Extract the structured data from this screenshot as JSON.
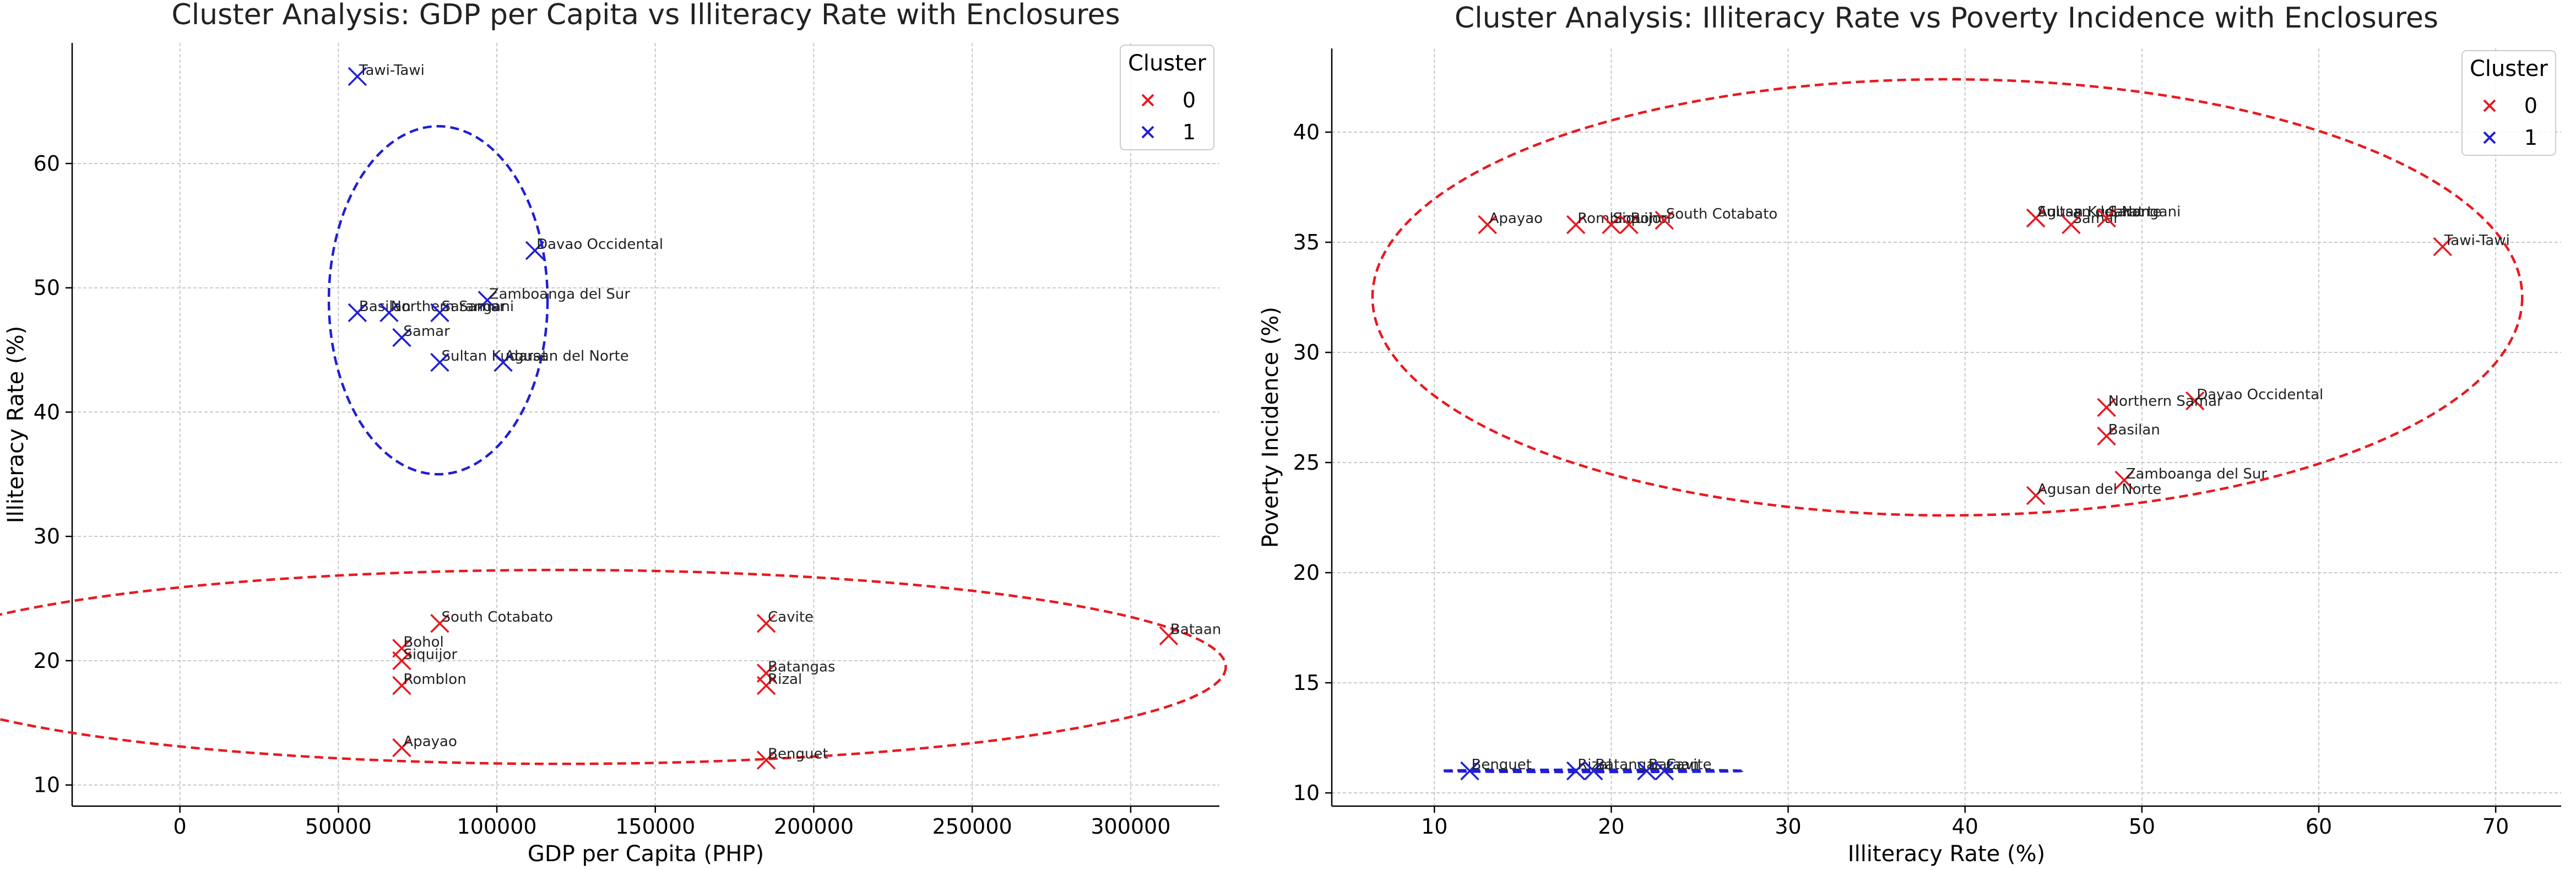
{
  "figure": {
    "background": "#ffffff"
  },
  "colors": {
    "cluster_0": "#e8191f",
    "cluster_1": "#1f1fd6",
    "grid": "#c8c8c8",
    "axis": "#000000"
  },
  "chart_data": [
    {
      "type": "scatter",
      "title": "Cluster Analysis: GDP per Capita vs Illiteracy Rate with Enclosures",
      "xlabel": "GDP per Capita (PHP)",
      "ylabel": "Illiteracy Rate (%)",
      "xlim": [
        -34000,
        328000
      ],
      "ylim": [
        8.3,
        69.7
      ],
      "xticks": [
        0,
        50000,
        100000,
        150000,
        200000,
        250000,
        300000
      ],
      "yticks": [
        10,
        20,
        30,
        40,
        50,
        60
      ],
      "grid": true,
      "legend": {
        "title": "Cluster",
        "position": "top-right",
        "entries": [
          "0",
          "1"
        ]
      },
      "enclosures": [
        {
          "cluster": "0",
          "cx": 120000,
          "cy": 19.5,
          "rx": 210000,
          "ry": 7.8
        },
        {
          "cluster": "1",
          "cx": 81500,
          "cy": 49,
          "rx": 34500,
          "ry": 14
        }
      ],
      "series": [
        {
          "name": "0",
          "points": [
            {
              "label": "South Cotabato",
              "x": 82000,
              "y": 23
            },
            {
              "label": "Bohol",
              "x": 70000,
              "y": 21
            },
            {
              "label": "Siquijor",
              "x": 70000,
              "y": 20
            },
            {
              "label": "Romblon",
              "x": 70000,
              "y": 18
            },
            {
              "label": "Apayao",
              "x": 70000,
              "y": 13
            },
            {
              "label": "Cavite",
              "x": 185000,
              "y": 23
            },
            {
              "label": "Batangas",
              "x": 185000,
              "y": 19
            },
            {
              "label": "Rizal",
              "x": 185000,
              "y": 18
            },
            {
              "label": "Benguet",
              "x": 185000,
              "y": 12
            },
            {
              "label": "Bataan",
              "x": 312000,
              "y": 22
            }
          ]
        },
        {
          "name": "1",
          "points": [
            {
              "label": "Tawi-Tawi",
              "x": 56000,
              "y": 67
            },
            {
              "label": "Davao Occidental",
              "x": 112000,
              "y": 53
            },
            {
              "label": "Zamboanga del Sur",
              "x": 97000,
              "y": 49
            },
            {
              "label": "Basilan",
              "x": 56000,
              "y": 48
            },
            {
              "label": "Northern Samar",
              "x": 66000,
              "y": 48
            },
            {
              "label": "Sarangani",
              "x": 82000,
              "y": 48
            },
            {
              "label": "Samar",
              "x": 70000,
              "y": 46
            },
            {
              "label": "Sultan Kudarat",
              "x": 82000,
              "y": 44
            },
            {
              "label": "Agusan del Norte",
              "x": 102000,
              "y": 44
            }
          ]
        }
      ]
    },
    {
      "type": "scatter",
      "title": "Cluster Analysis: Illiteracy Rate vs Poverty Incidence with Enclosures",
      "xlabel": "Illiteracy Rate (%)",
      "ylabel": "Poverty Incidence (%)",
      "xlim": [
        4.2,
        73.7
      ],
      "ylim": [
        9.4,
        43.8
      ],
      "xticks": [
        10,
        20,
        30,
        40,
        50,
        60,
        70
      ],
      "yticks": [
        10,
        15,
        20,
        25,
        30,
        35,
        40
      ],
      "grid": true,
      "legend": {
        "title": "Cluster",
        "position": "top-right",
        "entries": [
          "0",
          "1"
        ]
      },
      "enclosures": [
        {
          "cluster": "0",
          "cx": 39,
          "cy": 32.5,
          "rx": 32.5,
          "ry": 9.9
        },
        {
          "cluster": "1",
          "cx": 18.9,
          "cy": 11,
          "rx": 8.5,
          "ry": 0.05
        }
      ],
      "series": [
        {
          "name": "0",
          "points": [
            {
              "label": "Apayao",
              "x": 13,
              "y": 35.8
            },
            {
              "label": "Romblon",
              "x": 18,
              "y": 35.8
            },
            {
              "label": "Siquijor",
              "x": 20,
              "y": 35.8
            },
            {
              "label": "Bohol",
              "x": 21,
              "y": 35.8
            },
            {
              "label": "South Cotabato",
              "x": 23,
              "y": 36
            },
            {
              "label": "Sultan Kudarat",
              "x": 44,
              "y": 36.1
            },
            {
              "label": "Agusan del Norte",
              "x": 44,
              "y": 36.1
            },
            {
              "label": "Samar",
              "x": 46,
              "y": 35.8
            },
            {
              "label": "Sarangani",
              "x": 48,
              "y": 36.1
            },
            {
              "label": "Tawi-Tawi",
              "x": 67,
              "y": 34.8
            },
            {
              "label": "Davao Occidental",
              "x": 53,
              "y": 27.8
            },
            {
              "label": "Northern Samar",
              "x": 48,
              "y": 27.5
            },
            {
              "label": "Basilan",
              "x": 48,
              "y": 26.2
            },
            {
              "label": "Zamboanga del Sur",
              "x": 49,
              "y": 24.2
            },
            {
              "label": "Agusan del Norte",
              "x": 44,
              "y": 23.5
            }
          ]
        },
        {
          "name": "1",
          "points": [
            {
              "label": "Benguet",
              "x": 12,
              "y": 11
            },
            {
              "label": "Rizal",
              "x": 18,
              "y": 11
            },
            {
              "label": "Batangas",
              "x": 19,
              "y": 11
            },
            {
              "label": "Bataan",
              "x": 22,
              "y": 11
            },
            {
              "label": "Cavite",
              "x": 23,
              "y": 11
            }
          ]
        }
      ]
    }
  ]
}
